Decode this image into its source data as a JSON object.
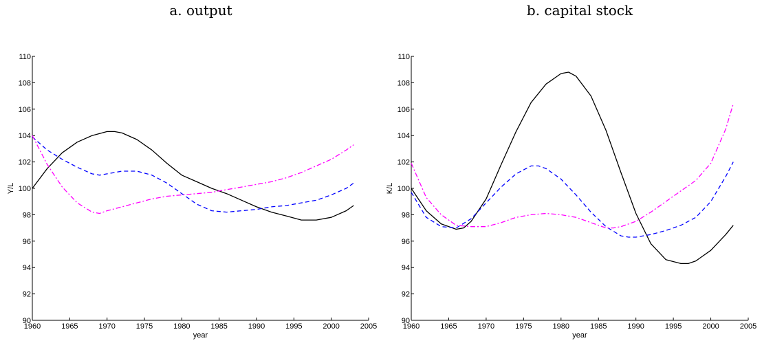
{
  "chart_data": [
    {
      "type": "line",
      "title": "a. output",
      "xlabel": "year",
      "ylabel": "Y/L",
      "xlim": [
        1960,
        2005
      ],
      "ylim": [
        90,
        110
      ],
      "xticks": [
        1960,
        1965,
        1970,
        1975,
        1980,
        1985,
        1990,
        1995,
        2000,
        2005
      ],
      "yticks": [
        90,
        92,
        94,
        96,
        98,
        100,
        102,
        104,
        106,
        108,
        110
      ],
      "grid": false,
      "series": [
        {
          "color": "#000000",
          "dash": "solid",
          "x": [
            1960,
            1962,
            1964,
            1966,
            1968,
            1970,
            1971,
            1972,
            1974,
            1976,
            1978,
            1980,
            1982,
            1984,
            1986,
            1988,
            1990,
            1992,
            1994,
            1996,
            1997,
            1998,
            2000,
            2002,
            2003
          ],
          "y": [
            100.0,
            101.5,
            102.7,
            103.5,
            104.0,
            104.3,
            104.3,
            104.2,
            103.7,
            102.9,
            101.9,
            101.0,
            100.5,
            100.0,
            99.6,
            99.1,
            98.6,
            98.2,
            97.9,
            97.6,
            97.6,
            97.6,
            97.8,
            98.3,
            98.7
          ]
        },
        {
          "color": "#0000ff",
          "dash": "dashed",
          "x": [
            1960,
            1962,
            1964,
            1966,
            1968,
            1969,
            1970,
            1972,
            1974,
            1976,
            1978,
            1980,
            1982,
            1984,
            1986,
            1988,
            1990,
            1992,
            1994,
            1996,
            1998,
            2000,
            2002,
            2003
          ],
          "y": [
            103.9,
            102.9,
            102.2,
            101.6,
            101.1,
            101.0,
            101.1,
            101.3,
            101.3,
            101.0,
            100.4,
            99.6,
            98.8,
            98.3,
            98.2,
            98.3,
            98.4,
            98.6,
            98.7,
            98.9,
            99.1,
            99.5,
            100.0,
            100.4
          ]
        },
        {
          "color": "#ff00ff",
          "dash": "dashdot",
          "x": [
            1960,
            1962,
            1964,
            1966,
            1968,
            1969,
            1970,
            1972,
            1974,
            1976,
            1978,
            1980,
            1982,
            1984,
            1986,
            1988,
            1990,
            1992,
            1994,
            1996,
            1998,
            2000,
            2002,
            2003
          ],
          "y": [
            104.0,
            101.8,
            100.1,
            98.9,
            98.2,
            98.1,
            98.3,
            98.6,
            98.9,
            99.2,
            99.4,
            99.5,
            99.6,
            99.7,
            99.9,
            100.1,
            100.3,
            100.5,
            100.8,
            101.2,
            101.7,
            102.2,
            102.9,
            103.3
          ]
        }
      ]
    },
    {
      "type": "line",
      "title": "b. capital stock",
      "xlabel": "year",
      "ylabel": "K/L",
      "xlim": [
        1960,
        2005
      ],
      "ylim": [
        90,
        110
      ],
      "xticks": [
        1960,
        1965,
        1970,
        1975,
        1980,
        1985,
        1990,
        1995,
        2000,
        2005
      ],
      "yticks": [
        90,
        92,
        94,
        96,
        98,
        100,
        102,
        104,
        106,
        108,
        110
      ],
      "grid": false,
      "series": [
        {
          "color": "#000000",
          "dash": "solid",
          "x": [
            1960,
            1962,
            1964,
            1966,
            1967,
            1968,
            1970,
            1972,
            1974,
            1976,
            1978,
            1980,
            1981,
            1982,
            1984,
            1986,
            1988,
            1990,
            1992,
            1994,
            1996,
            1997,
            1998,
            2000,
            2002,
            2003
          ],
          "y": [
            100.0,
            98.3,
            97.3,
            96.9,
            97.0,
            97.5,
            99.2,
            101.8,
            104.3,
            106.5,
            107.9,
            108.7,
            108.8,
            108.5,
            107.0,
            104.4,
            101.2,
            98.1,
            95.8,
            94.6,
            94.3,
            94.3,
            94.5,
            95.3,
            96.5,
            97.2
          ]
        },
        {
          "color": "#0000ff",
          "dash": "dashed",
          "x": [
            1960,
            1962,
            1964,
            1966,
            1968,
            1970,
            1972,
            1974,
            1976,
            1977,
            1978,
            1980,
            1982,
            1984,
            1986,
            1988,
            1989,
            1990,
            1992,
            1994,
            1996,
            1998,
            2000,
            2002,
            2003
          ],
          "y": [
            99.7,
            97.8,
            97.1,
            97.0,
            97.7,
            98.9,
            100.1,
            101.1,
            101.7,
            101.7,
            101.5,
            100.7,
            99.5,
            98.2,
            97.1,
            96.4,
            96.3,
            96.3,
            96.5,
            96.8,
            97.2,
            97.8,
            99.0,
            100.9,
            102.0
          ]
        },
        {
          "color": "#ff00ff",
          "dash": "dashdot",
          "x": [
            1960,
            1962,
            1964,
            1966,
            1968,
            1970,
            1972,
            1974,
            1976,
            1978,
            1980,
            1982,
            1984,
            1986,
            1987,
            1988,
            1990,
            1992,
            1994,
            1996,
            1998,
            2000,
            2002,
            2003
          ],
          "y": [
            101.9,
            99.3,
            98.0,
            97.2,
            97.1,
            97.1,
            97.4,
            97.8,
            98.0,
            98.1,
            98.0,
            97.8,
            97.4,
            97.0,
            97.0,
            97.1,
            97.5,
            98.2,
            99.0,
            99.8,
            100.6,
            101.9,
            104.5,
            106.4
          ]
        }
      ]
    }
  ]
}
